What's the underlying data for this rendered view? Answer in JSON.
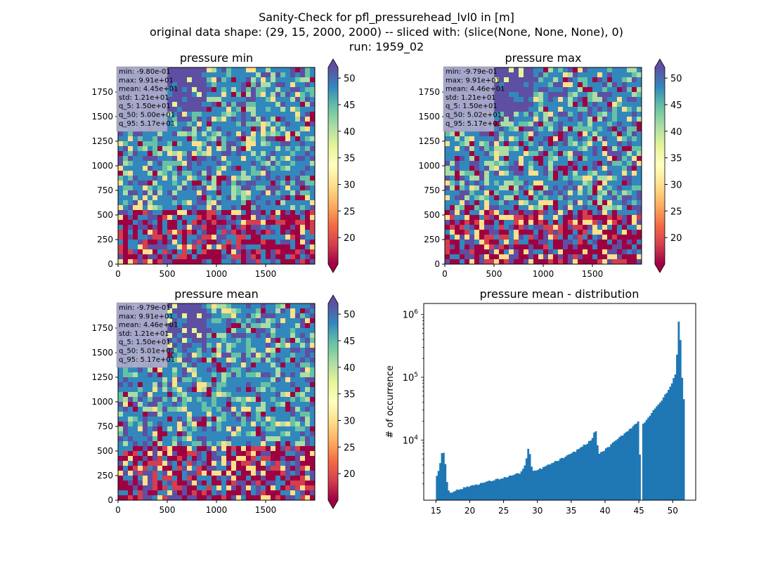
{
  "figure": {
    "title_line1": "Sanity-Check for pfl_pressurehead_lvl0 in [m]",
    "title_line2": "original data shape: (29, 15, 2000, 2000) -- sliced with: (slice(None, None, None), 0)",
    "title_line3": "run: 1959_02"
  },
  "colors": {
    "cmap": [
      "#9e0142",
      "#d53e4f",
      "#f46d43",
      "#fdae61",
      "#fee08b",
      "#ffffbf",
      "#e6f598",
      "#abdda4",
      "#66c2a5",
      "#3288bd",
      "#5e4fa2"
    ],
    "bar": "#1f77b4",
    "stats_box": "#aaaacc"
  },
  "panels": [
    {
      "title": "pressure min",
      "stats": [
        "min: -9.80e-01",
        "max: 9.91e+01",
        "mean: 4.45e+01",
        "std: 1.21e+01",
        "q_5: 1.50e+01",
        "q_50: 5.00e+01",
        "q_95: 5.17e+01"
      ],
      "xticks": [
        "0",
        "500",
        "1000",
        "1500"
      ],
      "yticks": [
        "0",
        "250",
        "500",
        "750",
        "1000",
        "1250",
        "1500",
        "1750"
      ],
      "cbar_ticks": [
        "20",
        "25",
        "30",
        "35",
        "40",
        "45",
        "50"
      ]
    },
    {
      "title": "pressure max",
      "stats": [
        "min: -9.79e-01",
        "max: 9.91e+01",
        "mean: 4.46e+01",
        "std: 1.21e+01",
        "q_5: 1.50e+01",
        "q_50: 5.02e+01",
        "q_95: 5.17e+01"
      ],
      "xticks": [
        "0",
        "500",
        "1000",
        "1500"
      ],
      "yticks": [
        "0",
        "250",
        "500",
        "750",
        "1000",
        "1250",
        "1500",
        "1750"
      ],
      "cbar_ticks": [
        "20",
        "25",
        "30",
        "35",
        "40",
        "45",
        "50"
      ]
    },
    {
      "title": "pressure mean",
      "stats": [
        "min: -9.79e-01",
        "max: 9.91e+01",
        "mean: 4.46e+01",
        "std: 1.21e+01",
        "q_5: 1.50e+01",
        "q_50: 5.01e+01",
        "q_95: 5.17e+01"
      ],
      "xticks": [
        "0",
        "500",
        "1000",
        "1500"
      ],
      "yticks": [
        "0",
        "250",
        "500",
        "750",
        "1000",
        "1250",
        "1500",
        "1750"
      ],
      "cbar_ticks": [
        "20",
        "25",
        "30",
        "35",
        "40",
        "45",
        "50"
      ]
    }
  ],
  "chart_data": [
    {
      "type": "heatmap",
      "title": "pressure min",
      "xlim": [
        0,
        2000
      ],
      "ylim": [
        0,
        2000
      ],
      "clim": [
        15,
        52
      ],
      "colorbar": "Spectral, extend both"
    },
    {
      "type": "heatmap",
      "title": "pressure max",
      "xlim": [
        0,
        2000
      ],
      "ylim": [
        0,
        2000
      ],
      "clim": [
        15,
        52
      ],
      "colorbar": "Spectral, extend both"
    },
    {
      "type": "heatmap",
      "title": "pressure mean",
      "xlim": [
        0,
        2000
      ],
      "ylim": [
        0,
        2000
      ],
      "clim": [
        15,
        52
      ],
      "colorbar": "Spectral, extend both"
    },
    {
      "type": "bar",
      "title": "pressure mean - distribution",
      "xlabel": "",
      "ylabel": "# of occurrence",
      "yscale": "log",
      "xlim": [
        13.2,
        53.4
      ],
      "ylim": [
        1100,
        1500000
      ],
      "xticks": [
        "15",
        "20",
        "25",
        "30",
        "35",
        "40",
        "45",
        "50"
      ],
      "yticks": [
        "10^4",
        "10^5",
        "10^6"
      ],
      "key_points": [
        {
          "x": 15.0,
          "y": 2500
        },
        {
          "x": 15.5,
          "y": 3500
        },
        {
          "x": 16.0,
          "y": 7500
        },
        {
          "x": 16.3,
          "y": 5000
        },
        {
          "x": 16.7,
          "y": 1800
        },
        {
          "x": 17.0,
          "y": 1450
        },
        {
          "x": 20.0,
          "y": 1850
        },
        {
          "x": 25.0,
          "y": 2500
        },
        {
          "x": 27.5,
          "y": 3000
        },
        {
          "x": 28.2,
          "y": 4000
        },
        {
          "x": 28.7,
          "y": 8000
        },
        {
          "x": 29.2,
          "y": 3200
        },
        {
          "x": 30.0,
          "y": 3300
        },
        {
          "x": 35.0,
          "y": 6000
        },
        {
          "x": 38.0,
          "y": 10000
        },
        {
          "x": 38.6,
          "y": 15000
        },
        {
          "x": 39.0,
          "y": 6000
        },
        {
          "x": 40.0,
          "y": 7000
        },
        {
          "x": 45.0,
          "y": 20000
        },
        {
          "x": 45.3,
          "y": 1100
        },
        {
          "x": 45.6,
          "y": 18000
        },
        {
          "x": 48.0,
          "y": 38000
        },
        {
          "x": 49.5,
          "y": 65000
        },
        {
          "x": 50.5,
          "y": 120000
        },
        {
          "x": 50.9,
          "y": 900000
        },
        {
          "x": 51.2,
          "y": 300000
        },
        {
          "x": 51.5,
          "y": 45000
        }
      ]
    }
  ]
}
